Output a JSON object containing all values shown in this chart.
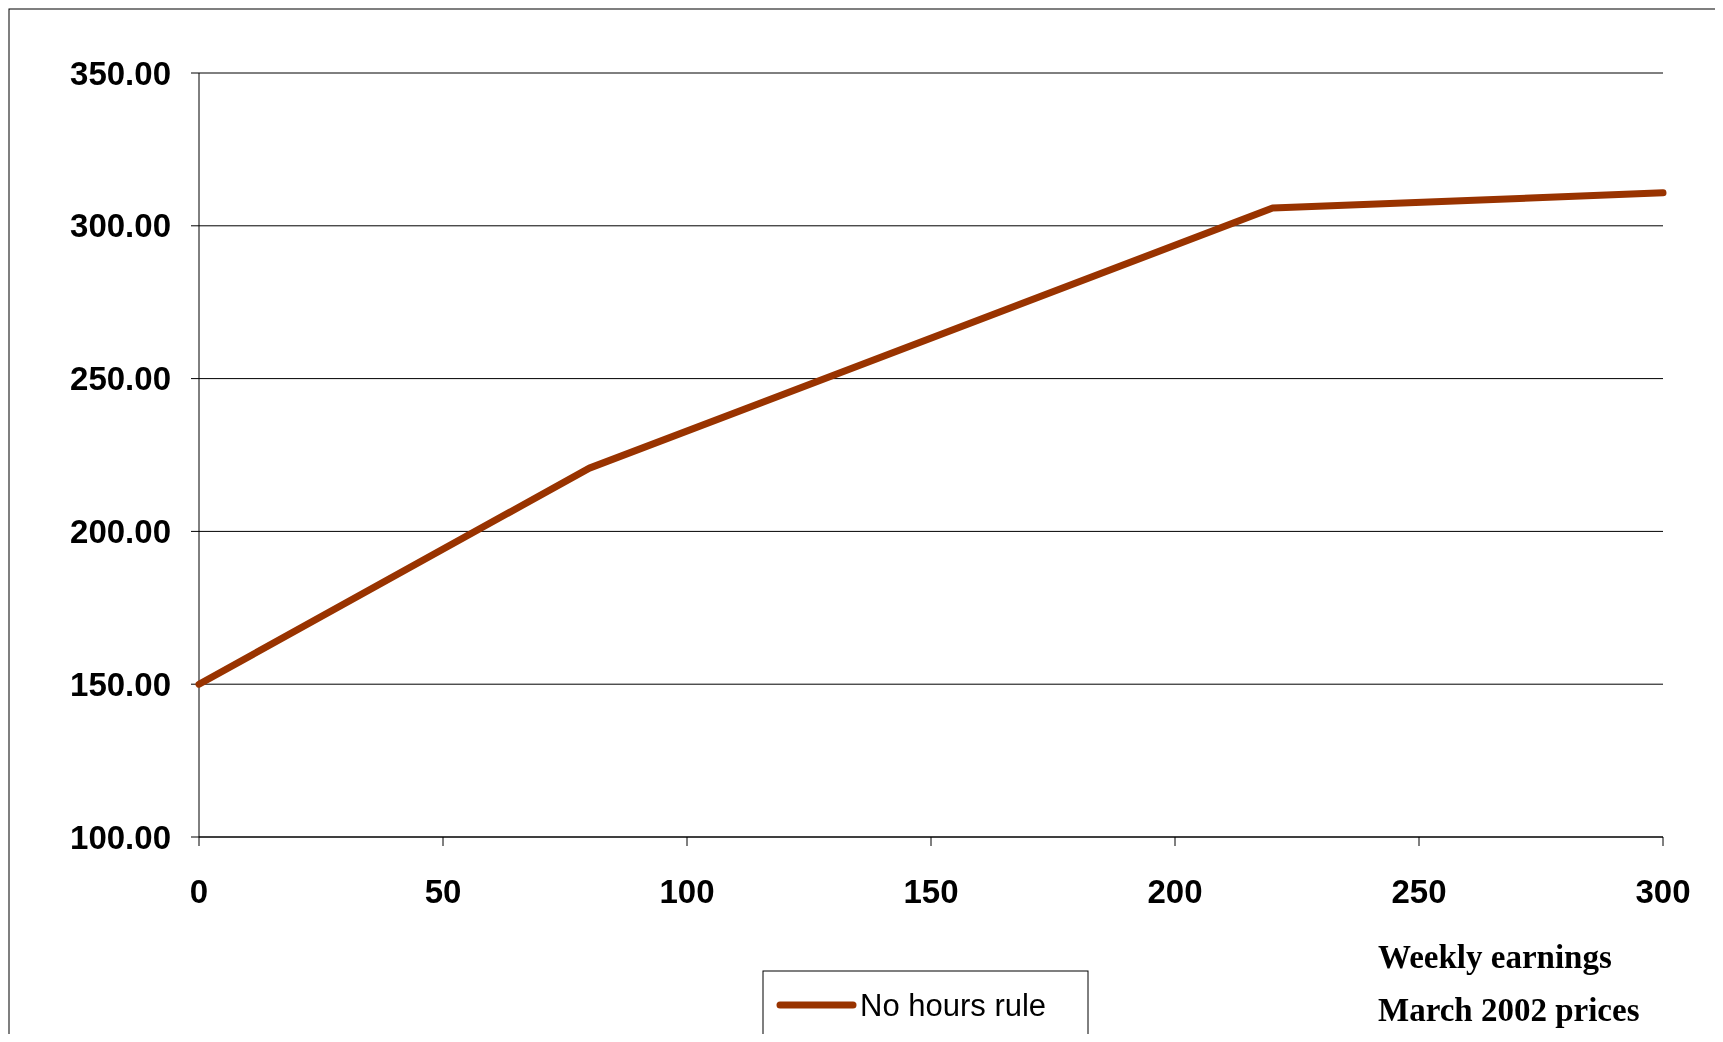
{
  "chart_data": {
    "type": "line",
    "xlabel": "Weekly earnings\nMarch 2002 prices",
    "x": [
      0,
      80,
      220,
      300
    ],
    "series": [
      {
        "name": "No hours rule",
        "color": "#993300",
        "values": [
          150,
          220.7,
          305.8,
          310.8
        ]
      }
    ],
    "xlim": [
      0,
      300
    ],
    "xticks": [
      0,
      50,
      100,
      150,
      200,
      250,
      300
    ],
    "ylim": [
      100,
      350
    ],
    "yticks": [
      {
        "value": 100,
        "label": "100.00"
      },
      {
        "value": 150,
        "label": "150.00"
      },
      {
        "value": 200,
        "label": "200.00"
      },
      {
        "value": 250,
        "label": "250.00"
      },
      {
        "value": 300,
        "label": "300.00"
      },
      {
        "value": 350,
        "label": "350.00"
      }
    ],
    "grid": "y",
    "legend": "bottom",
    "marker": "none",
    "line_style": "solid"
  }
}
